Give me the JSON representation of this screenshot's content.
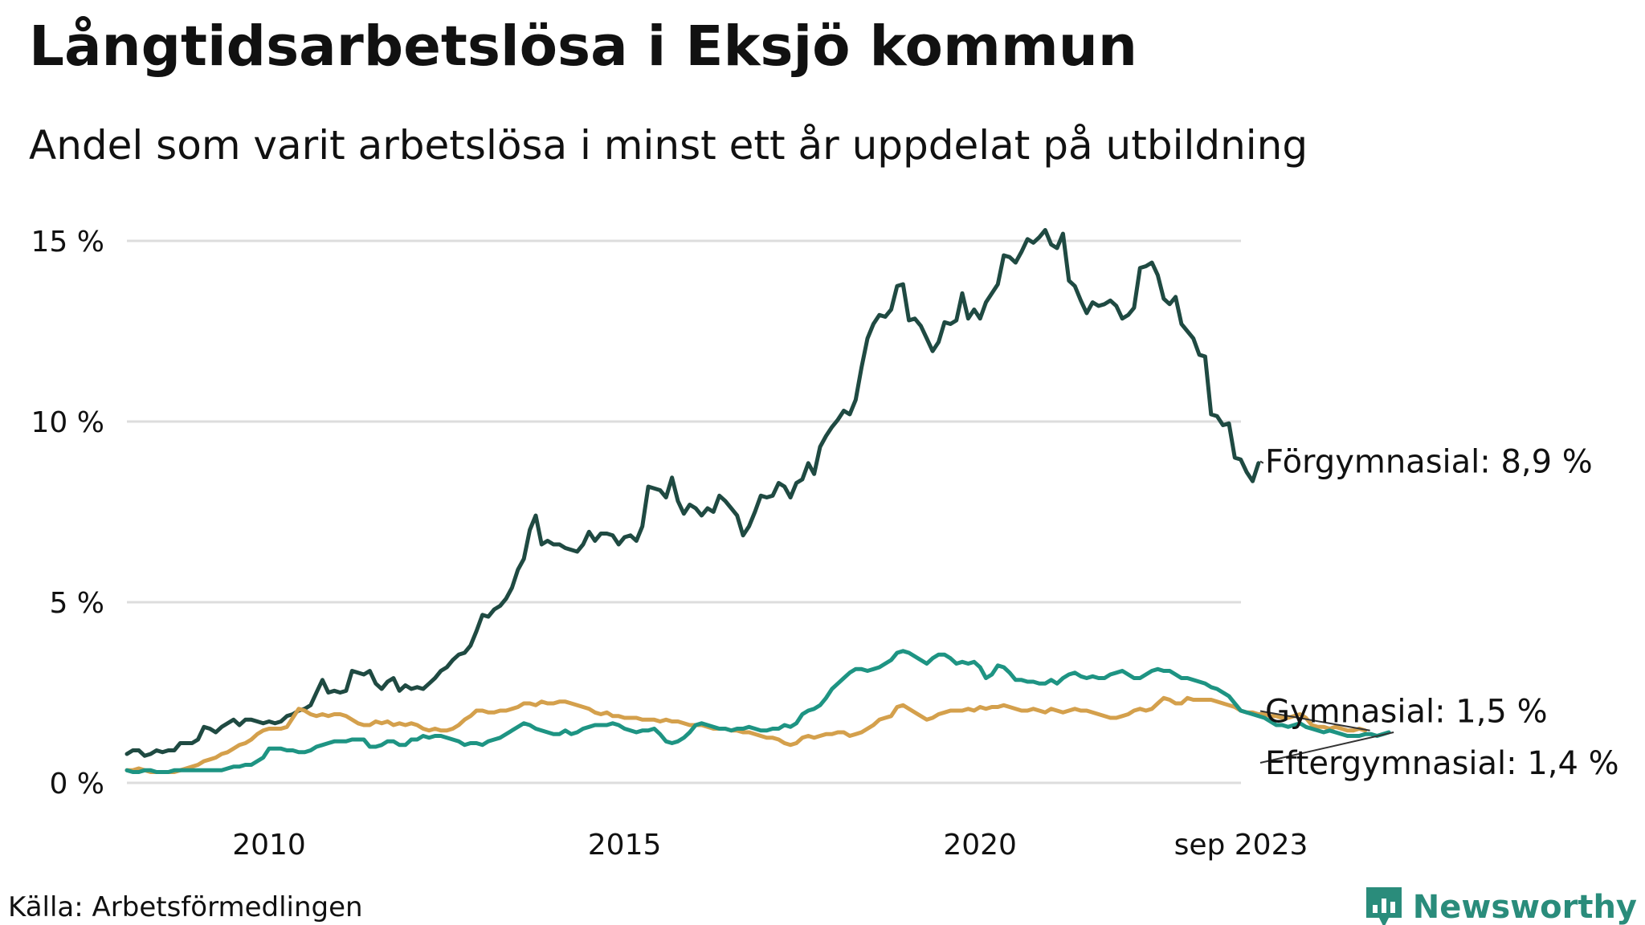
{
  "title": "Långtidsarbetslösa i Eksjö kommun",
  "subtitle": "Andel som varit arbetslösa i minst ett år uppdelat på utbildning",
  "source": "Källa: Arbetsförmedlingen",
  "brand": {
    "name": "Newsworthy",
    "icon": "newsworthy-logo-icon",
    "color": "#2a8c7b"
  },
  "chart_data": {
    "type": "line",
    "x_start": 2008.0,
    "x_step": 0.0833333,
    "x_end_label": "sep 2023",
    "xlim": [
      2008.0,
      2023.67
    ],
    "ylim": [
      0,
      15
    ],
    "yticks": [
      0,
      5,
      10,
      15
    ],
    "ytick_labels": [
      "0 %",
      "5 %",
      "10 %",
      "15 %"
    ],
    "xticks": [
      2010,
      2015,
      2020,
      2023.67
    ],
    "xtick_labels": [
      "2010",
      "2015",
      "2020",
      "sep 2023"
    ],
    "grid": true,
    "series": [
      {
        "name": "Förgymnasial",
        "label": "Förgymnasial: 8,9 %",
        "color": "#1f4a42",
        "values": [
          0.8,
          0.9,
          0.9,
          0.75,
          0.8,
          0.9,
          0.85,
          0.9,
          0.9,
          1.1,
          1.1,
          1.1,
          1.2,
          1.55,
          1.5,
          1.4,
          1.55,
          1.65,
          1.75,
          1.6,
          1.75,
          1.75,
          1.7,
          1.65,
          1.7,
          1.65,
          1.7,
          1.85,
          1.9,
          2.0,
          2.05,
          2.15,
          2.5,
          2.85,
          2.5,
          2.55,
          2.5,
          2.55,
          3.1,
          3.05,
          3.0,
          3.1,
          2.75,
          2.6,
          2.8,
          2.9,
          2.55,
          2.7,
          2.6,
          2.65,
          2.6,
          2.75,
          2.9,
          3.1,
          3.2,
          3.4,
          3.55,
          3.6,
          3.8,
          4.2,
          4.65,
          4.6,
          4.8,
          4.9,
          5.1,
          5.4,
          5.9,
          6.2,
          7.0,
          7.4,
          6.6,
          6.7,
          6.6,
          6.6,
          6.5,
          6.45,
          6.4,
          6.6,
          6.95,
          6.7,
          6.9,
          6.9,
          6.85,
          6.6,
          6.8,
          6.85,
          6.7,
          7.1,
          8.2,
          8.15,
          8.1,
          7.9,
          8.45,
          7.8,
          7.45,
          7.7,
          7.6,
          7.4,
          7.6,
          7.5,
          7.95,
          7.8,
          7.6,
          7.4,
          6.85,
          7.1,
          7.5,
          7.95,
          7.9,
          7.95,
          8.3,
          8.2,
          7.9,
          8.3,
          8.4,
          8.85,
          8.55,
          9.3,
          9.6,
          9.85,
          10.05,
          10.3,
          10.2,
          10.6,
          11.5,
          12.3,
          12.7,
          12.95,
          12.9,
          13.1,
          13.75,
          13.8,
          12.8,
          12.85,
          12.65,
          12.3,
          11.95,
          12.2,
          12.75,
          12.7,
          12.8,
          13.55,
          12.85,
          13.1,
          12.85,
          13.3,
          13.55,
          13.8,
          14.6,
          14.55,
          14.4,
          14.7,
          15.05,
          14.95,
          15.1,
          15.3,
          14.9,
          14.8,
          15.2,
          13.9,
          13.75,
          13.35,
          13.0,
          13.3,
          13.2,
          13.25,
          13.35,
          13.2,
          12.85,
          12.95,
          13.15,
          14.25,
          14.3,
          14.4,
          14.05,
          13.4,
          13.25,
          13.45,
          12.7,
          12.5,
          12.3,
          11.85,
          11.8,
          10.2,
          10.15,
          9.9,
          9.95,
          9.0,
          8.95,
          8.6,
          8.35,
          8.85
        ],
        "end_value": 8.9
      },
      {
        "name": "Gymnasial",
        "label": "Gymnasial: 1,5 %",
        "color": "#d4a04c",
        "values": [
          0.35,
          0.35,
          0.4,
          0.35,
          0.3,
          0.3,
          0.3,
          0.3,
          0.3,
          0.35,
          0.4,
          0.45,
          0.5,
          0.6,
          0.65,
          0.7,
          0.8,
          0.85,
          0.95,
          1.05,
          1.1,
          1.2,
          1.35,
          1.45,
          1.5,
          1.5,
          1.5,
          1.55,
          1.8,
          2.05,
          2.0,
          1.9,
          1.85,
          1.9,
          1.85,
          1.9,
          1.9,
          1.85,
          1.75,
          1.65,
          1.6,
          1.6,
          1.7,
          1.65,
          1.7,
          1.6,
          1.65,
          1.6,
          1.65,
          1.6,
          1.5,
          1.45,
          1.5,
          1.45,
          1.45,
          1.5,
          1.6,
          1.75,
          1.85,
          2.0,
          2.0,
          1.95,
          1.95,
          2.0,
          2.0,
          2.05,
          2.1,
          2.2,
          2.2,
          2.15,
          2.25,
          2.2,
          2.2,
          2.25,
          2.25,
          2.2,
          2.15,
          2.1,
          2.05,
          1.95,
          1.9,
          1.95,
          1.85,
          1.85,
          1.8,
          1.8,
          1.8,
          1.75,
          1.75,
          1.75,
          1.7,
          1.75,
          1.7,
          1.7,
          1.65,
          1.6,
          1.6,
          1.6,
          1.55,
          1.5,
          1.5,
          1.5,
          1.45,
          1.45,
          1.4,
          1.4,
          1.35,
          1.3,
          1.25,
          1.25,
          1.2,
          1.1,
          1.05,
          1.1,
          1.25,
          1.3,
          1.25,
          1.3,
          1.35,
          1.35,
          1.4,
          1.4,
          1.3,
          1.35,
          1.4,
          1.5,
          1.6,
          1.75,
          1.8,
          1.85,
          2.1,
          2.15,
          2.05,
          1.95,
          1.85,
          1.75,
          1.8,
          1.9,
          1.95,
          2.0,
          2.0,
          2.0,
          2.05,
          2.0,
          2.1,
          2.05,
          2.1,
          2.1,
          2.15,
          2.1,
          2.05,
          2.0,
          2.0,
          2.05,
          2.0,
          1.95,
          2.05,
          2.0,
          1.95,
          2.0,
          2.05,
          2.0,
          2.0,
          1.95,
          1.9,
          1.85,
          1.8,
          1.8,
          1.85,
          1.9,
          2.0,
          2.05,
          2.0,
          2.05,
          2.2,
          2.35,
          2.3,
          2.2,
          2.2,
          2.35,
          2.3,
          2.3,
          2.3,
          2.3,
          2.25,
          2.2,
          2.15,
          2.1,
          2.0,
          1.95,
          1.95,
          1.9,
          1.9,
          1.85,
          1.85,
          1.8,
          1.8,
          1.85,
          1.9,
          1.8,
          1.6,
          1.55,
          1.55,
          1.5,
          1.55,
          1.5,
          1.45,
          1.45,
          1.5,
          1.45
        ],
        "end_value": 1.5
      },
      {
        "name": "Eftergymnasial",
        "label": "Eftergymnasial: 1,4 %",
        "color": "#1e9483",
        "values": [
          0.35,
          0.3,
          0.3,
          0.35,
          0.35,
          0.3,
          0.3,
          0.3,
          0.35,
          0.35,
          0.35,
          0.35,
          0.35,
          0.35,
          0.35,
          0.35,
          0.35,
          0.4,
          0.45,
          0.45,
          0.5,
          0.5,
          0.6,
          0.7,
          0.95,
          0.95,
          0.95,
          0.9,
          0.9,
          0.85,
          0.85,
          0.9,
          1.0,
          1.05,
          1.1,
          1.15,
          1.15,
          1.15,
          1.2,
          1.2,
          1.2,
          1.0,
          1.0,
          1.05,
          1.15,
          1.15,
          1.05,
          1.05,
          1.2,
          1.2,
          1.3,
          1.25,
          1.3,
          1.3,
          1.25,
          1.2,
          1.15,
          1.05,
          1.1,
          1.1,
          1.05,
          1.15,
          1.2,
          1.25,
          1.35,
          1.45,
          1.55,
          1.65,
          1.6,
          1.5,
          1.45,
          1.4,
          1.35,
          1.35,
          1.45,
          1.35,
          1.4,
          1.5,
          1.55,
          1.6,
          1.6,
          1.6,
          1.65,
          1.6,
          1.5,
          1.45,
          1.4,
          1.45,
          1.45,
          1.5,
          1.35,
          1.15,
          1.1,
          1.15,
          1.25,
          1.4,
          1.6,
          1.65,
          1.6,
          1.55,
          1.5,
          1.5,
          1.45,
          1.5,
          1.5,
          1.55,
          1.5,
          1.45,
          1.45,
          1.5,
          1.5,
          1.6,
          1.55,
          1.65,
          1.9,
          2.0,
          2.05,
          2.15,
          2.35,
          2.6,
          2.75,
          2.9,
          3.05,
          3.15,
          3.15,
          3.1,
          3.15,
          3.2,
          3.3,
          3.4,
          3.6,
          3.65,
          3.6,
          3.5,
          3.4,
          3.3,
          3.45,
          3.55,
          3.55,
          3.45,
          3.3,
          3.35,
          3.3,
          3.35,
          3.2,
          2.9,
          3.0,
          3.25,
          3.2,
          3.05,
          2.85,
          2.85,
          2.8,
          2.8,
          2.75,
          2.75,
          2.85,
          2.75,
          2.9,
          3.0,
          3.05,
          2.95,
          2.9,
          2.95,
          2.9,
          2.9,
          3.0,
          3.05,
          3.1,
          3.0,
          2.9,
          2.9,
          3.0,
          3.1,
          3.15,
          3.1,
          3.1,
          3.0,
          2.9,
          2.9,
          2.85,
          2.8,
          2.75,
          2.65,
          2.6,
          2.5,
          2.4,
          2.2,
          2.0,
          1.95,
          1.9,
          1.85,
          1.8,
          1.7,
          1.6,
          1.6,
          1.55,
          1.6,
          1.65,
          1.55,
          1.5,
          1.45,
          1.4,
          1.45,
          1.4,
          1.35,
          1.3,
          1.3,
          1.3,
          1.35,
          1.35,
          1.3,
          1.35,
          1.4
        ],
        "end_value": 1.4
      }
    ]
  }
}
